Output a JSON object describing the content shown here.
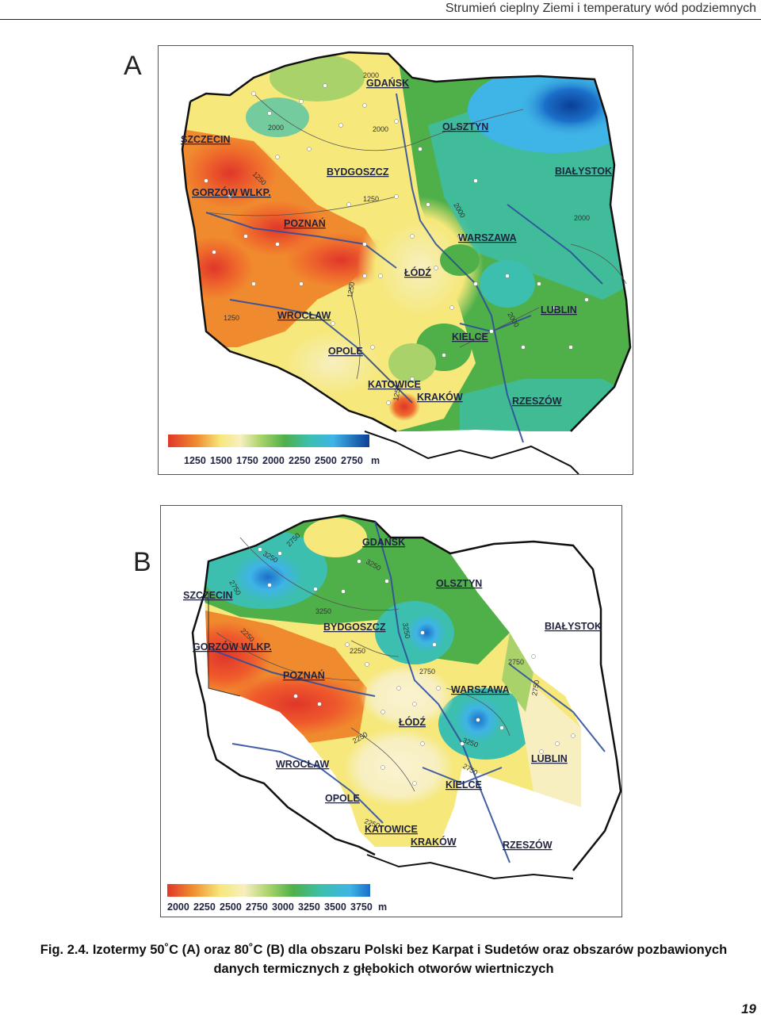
{
  "header": {
    "title": "Strumień cieplny Ziemi i temperatury wód podziemnych"
  },
  "panel_a": {
    "letter": "A",
    "cities": [
      "SZCZECIN",
      "GORZÓW WLKP.",
      "POZNAŃ",
      "BYDGOSZCZ",
      "GDAŃSK",
      "OLSZTYN",
      "BIAŁYSTOK",
      "WARSZAWA",
      "ŁÓDŹ",
      "LUBLIN",
      "WROCŁAW",
      "OPOLE",
      "KIELCE",
      "KATOWICE",
      "KRAKÓW",
      "RZESZÓW"
    ],
    "isolines": [
      "2000",
      "2000",
      "2000",
      "1250",
      "1250",
      "2000",
      "2000",
      "1250",
      "1250",
      "2000",
      "1250"
    ],
    "legend": {
      "ticks": [
        "1250",
        "1500",
        "1750",
        "2000",
        "2250",
        "2500",
        "2750"
      ],
      "unit": "m"
    }
  },
  "panel_b": {
    "letter": "B",
    "cities": [
      "SZCZECIN",
      "GORZÓW WLKP.",
      "POZNAŃ",
      "BYDGOSZCZ",
      "GDAŃSK",
      "OLSZTYN",
      "BIAŁYSTOK",
      "WARSZAWA",
      "ŁÓDŹ",
      "LUBLIN",
      "WROCŁAW",
      "OPOLE",
      "KIELCE",
      "KATOWICE",
      "KRAKÓW",
      "RZESZÓW"
    ],
    "isolines": [
      "2750",
      "3250",
      "3250",
      "2750",
      "3250",
      "2250",
      "3250",
      "2250",
      "2750",
      "2750",
      "2750",
      "3250",
      "2250",
      "2750",
      "2250"
    ],
    "legend": {
      "ticks": [
        "2000",
        "2250",
        "2500",
        "2750",
        "3000",
        "3250",
        "3500",
        "3750"
      ],
      "unit": "m"
    }
  },
  "colors": {
    "red": "#e0362a",
    "orange": "#f08a2e",
    "yellow": "#f6e87a",
    "cream": "#f7efc0",
    "lightgreen": "#a9d36a",
    "green": "#4fb04a",
    "teal": "#3cbfae",
    "lightblue": "#3fb4e6",
    "blue": "#1b6fc9",
    "navy": "#0b3f96",
    "river": "#2f4f9c"
  },
  "caption": {
    "line1": "Fig. 2.4. Izotermy 50˚C (A) oraz 80˚C (B) dla obszaru Polski bez Karpat i Sudetów oraz obszarów pozbawionych",
    "line2": "danych termicznych z głębokich otworów wiertniczych"
  },
  "page_number": "19"
}
